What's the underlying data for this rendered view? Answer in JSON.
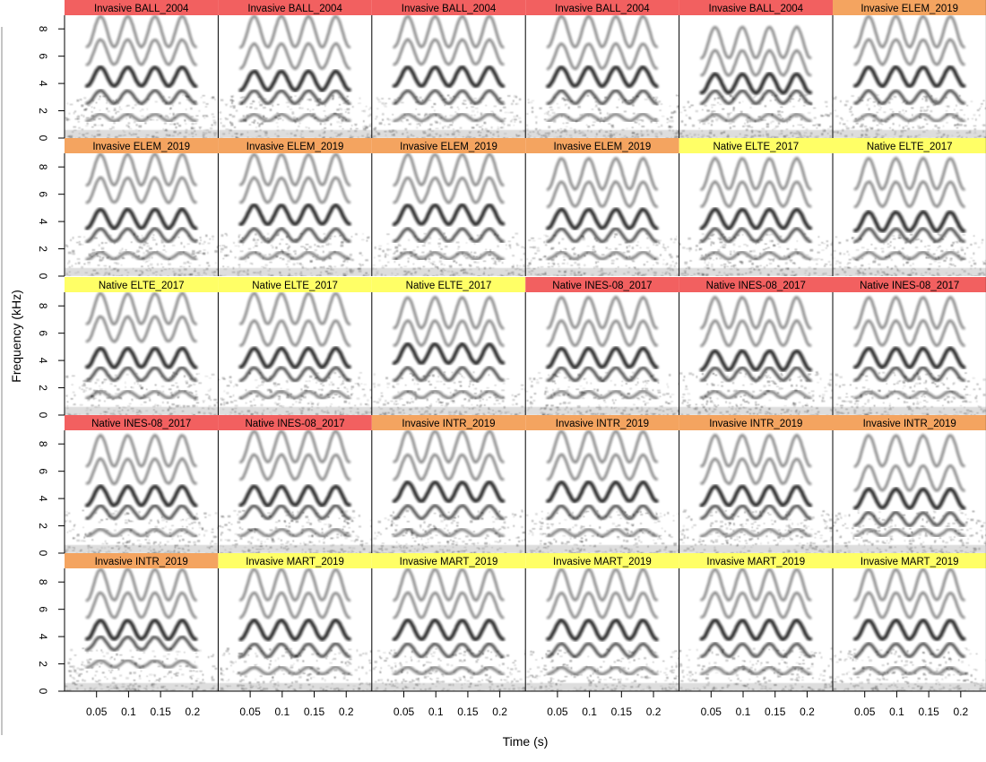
{
  "chart_data": {
    "type": "spectrogram-grid",
    "xlabel": "Time (s)",
    "ylabel": "Frequency (kHz)",
    "xlim": [
      0,
      0.24
    ],
    "ylim": [
      0,
      9
    ],
    "x_ticks": [
      0.05,
      0.1,
      0.15,
      0.2
    ],
    "x_tick_labels": [
      "0.05",
      "0.1",
      "0.15",
      "0.2"
    ],
    "y_ticks": [
      0,
      2,
      4,
      6,
      8
    ],
    "y_tick_labels": [
      "0",
      "2",
      "4",
      "6",
      "8"
    ],
    "range_colors": {
      "Invasive BALL_2004": "#f26060",
      "Invasive ELEM_2019": "#f4a460",
      "Native ELTE_2017": "#ffff66",
      "Native INES-08_2017": "#f26060",
      "Invasive INTR_2019": "#f4a460",
      "Invasive MART_2019": "#ffff66"
    },
    "panels": [
      {
        "label": "Invasive BALL_2004",
        "harmonics_khz": [
          1.5,
          3,
          4.5,
          6.3,
          7.8
        ]
      },
      {
        "label": "Invasive BALL_2004",
        "harmonics_khz": [
          1.5,
          3,
          4.2,
          6,
          7.8
        ]
      },
      {
        "label": "Invasive BALL_2004",
        "harmonics_khz": [
          1.5,
          3,
          4.5,
          6.3,
          7.8
        ]
      },
      {
        "label": "Invasive BALL_2004",
        "harmonics_khz": [
          1.5,
          3,
          4.5,
          6,
          7.8
        ]
      },
      {
        "label": "Invasive BALL_2004",
        "harmonics_khz": [
          1.5,
          3,
          4,
          5.5,
          7
        ]
      },
      {
        "label": "Invasive ELEM_2019",
        "harmonics_khz": [
          1.5,
          3,
          4.5,
          6.3,
          7.8
        ]
      },
      {
        "label": "Invasive ELEM_2019",
        "harmonics_khz": [
          1.5,
          3,
          4.2,
          6.3,
          7.8
        ]
      },
      {
        "label": "Invasive ELEM_2019",
        "harmonics_khz": [
          1.5,
          3,
          4.5,
          6.3,
          7.8
        ]
      },
      {
        "label": "Invasive ELEM_2019",
        "harmonics_khz": [
          1.5,
          3,
          4.5,
          6.3,
          7.8
        ]
      },
      {
        "label": "Invasive ELEM_2019",
        "harmonics_khz": [
          1.5,
          3,
          4.2,
          6,
          7.5
        ]
      },
      {
        "label": "Native ELTE_2017",
        "harmonics_khz": [
          1.5,
          3,
          4.2,
          6,
          7.5
        ]
      },
      {
        "label": "Native ELTE_2017",
        "harmonics_khz": [
          1.5,
          3,
          4,
          6,
          7.5
        ]
      },
      {
        "label": "Native ELTE_2017",
        "harmonics_khz": [
          1.5,
          3,
          4.2,
          6.3,
          7.8
        ]
      },
      {
        "label": "Native ELTE_2017",
        "harmonics_khz": [
          1.5,
          3,
          4.2,
          6,
          7.8
        ]
      },
      {
        "label": "Native ELTE_2017",
        "harmonics_khz": [
          1.5,
          3,
          4.5,
          6,
          7.5
        ]
      },
      {
        "label": "Native INES-08_2017",
        "harmonics_khz": [
          1.5,
          3,
          4.2,
          6,
          7.5
        ]
      },
      {
        "label": "Native INES-08_2017",
        "harmonics_khz": [
          1.5,
          3,
          4,
          6,
          7.5
        ]
      },
      {
        "label": "Native INES-08_2017",
        "harmonics_khz": [
          1.5,
          3,
          4.2,
          6,
          7.5
        ]
      },
      {
        "label": "Native INES-08_2017",
        "harmonics_khz": [
          1.5,
          3,
          4.2,
          6,
          7.5
        ]
      },
      {
        "label": "Native INES-08_2017",
        "harmonics_khz": [
          1.5,
          3,
          4.2,
          6.3,
          7.8
        ]
      },
      {
        "label": "Invasive INTR_2019",
        "harmonics_khz": [
          1.5,
          3,
          4.5,
          6.3,
          7.8
        ]
      },
      {
        "label": "Invasive INTR_2019",
        "harmonics_khz": [
          1.5,
          3,
          4.5,
          6.3,
          7.8
        ]
      },
      {
        "label": "Invasive INTR_2019",
        "harmonics_khz": [
          1.5,
          3,
          4.2,
          6,
          7.5
        ]
      },
      {
        "label": "Invasive INTR_2019",
        "harmonics_khz": [
          1.5,
          2.5,
          4,
          5.5,
          7.5
        ]
      },
      {
        "label": "Invasive INTR_2019",
        "harmonics_khz": [
          2,
          3.5,
          4.5,
          6.3,
          7.8
        ]
      },
      {
        "label": "Invasive MART_2019",
        "harmonics_khz": [
          1.5,
          3,
          4.5,
          6.3,
          7.8
        ]
      },
      {
        "label": "Invasive MART_2019",
        "harmonics_khz": [
          1.5,
          3,
          4.5,
          6.3,
          7.8
        ]
      },
      {
        "label": "Invasive MART_2019",
        "harmonics_khz": [
          1.5,
          3,
          4.5,
          6.3,
          7.8
        ]
      },
      {
        "label": "Invasive MART_2019",
        "harmonics_khz": [
          1.5,
          3,
          4.5,
          6.3,
          7.8
        ]
      },
      {
        "label": "Invasive MART_2019",
        "harmonics_khz": [
          1.5,
          3,
          4.5,
          6.3,
          7.8
        ]
      }
    ]
  }
}
